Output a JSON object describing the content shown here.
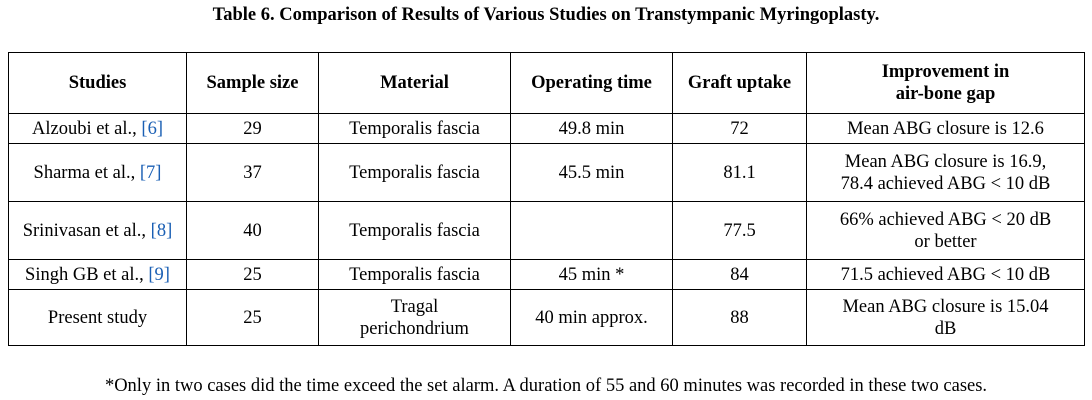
{
  "caption": "Table 6. Comparison of Results of Various Studies on Transtympanic Myringoplasty.",
  "table": {
    "headers": [
      "Studies",
      "Sample size",
      "Material",
      "Operating time",
      "Graft uptake",
      "Improvement in\nair-bone gap"
    ],
    "rows": [
      {
        "study": "Alzoubi et al., ",
        "ref": "[6]",
        "sample_size": "29",
        "material": "Temporalis fascia",
        "operating_time": "49.8 min",
        "graft_uptake": "72",
        "improvement": "Mean ABG closure is 12.6"
      },
      {
        "study": "Sharma et al., ",
        "ref": "[7]",
        "sample_size": "37",
        "material": "Temporalis fascia",
        "operating_time": "45.5 min",
        "graft_uptake": "81.1",
        "improvement": "Mean ABG closure is 16.9,\n78.4 achieved ABG < 10 dB"
      },
      {
        "study": "Srinivasan et al., ",
        "ref": "[8]",
        "sample_size": "40",
        "material": "Temporalis fascia",
        "operating_time": "",
        "graft_uptake": "77.5",
        "improvement": "66% achieved ABG < 20 dB\nor better"
      },
      {
        "study": "Singh GB et al., ",
        "ref": "[9]",
        "sample_size": "25",
        "material": "Temporalis fascia",
        "operating_time": "45 min *",
        "graft_uptake": "84",
        "improvement": "71.5 achieved ABG < 10 dB"
      },
      {
        "study": "Present study",
        "ref": "",
        "sample_size": "25",
        "material": "Tragal\nperichondrium",
        "operating_time": "40 min approx.",
        "graft_uptake": "88",
        "improvement": "Mean ABG closure is 15.04\ndB"
      }
    ]
  },
  "footnote": "*Only in two cases did the time exceed the set alarm. A duration of 55 and 60 minutes was recorded in these two cases.",
  "colors": {
    "reference_link": "#1a5fb4",
    "border": "#000000",
    "text": "#000000"
  }
}
